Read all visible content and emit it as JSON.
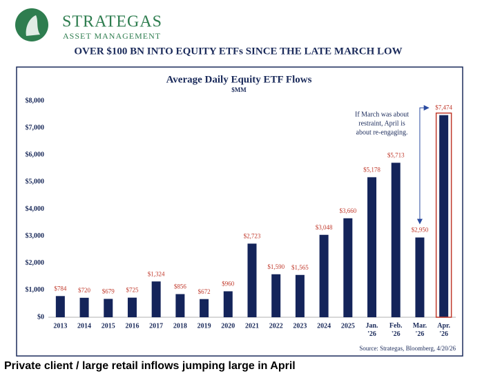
{
  "header": {
    "brand": "STRATEGAS",
    "subbrand": "ASSET MANAGEMENT",
    "headline": "OVER $100 BN INTO EQUITY ETFs SINCE THE LATE MARCH LOW"
  },
  "caption": "Private client / large retail inflows jumping large in April",
  "chart_data": {
    "type": "bar",
    "title": "Average Daily Equity ETF Flows",
    "subtitle": "$MM",
    "categories": [
      "2013",
      "2014",
      "2015",
      "2016",
      "2017",
      "2018",
      "2019",
      "2020",
      "2021",
      "2022",
      "2023",
      "2024",
      "2025",
      "Jan. '26",
      "Feb. '26",
      "Mar. '26",
      "Apr. '26"
    ],
    "values": [
      784,
      720,
      679,
      725,
      1324,
      856,
      672,
      960,
      2723,
      1590,
      1565,
      3048,
      3660,
      5178,
      5713,
      2950,
      7474
    ],
    "value_labels": [
      "$784",
      "$720",
      "$679",
      "$725",
      "$1,324",
      "$856",
      "$672",
      "$960",
      "$2,723",
      "$1,590",
      "$1,565",
      "$3,048",
      "$3,660",
      "$5,178",
      "$5,713",
      "$2,950",
      "$7,474"
    ],
    "color": "#14245a",
    "label_color": "#c0392b",
    "ylim": [
      0,
      8000
    ],
    "yticks": [
      {
        "value": 0,
        "label": "$0"
      },
      {
        "value": 1000,
        "label": "$1,000"
      },
      {
        "value": 2000,
        "label": "$2,000"
      },
      {
        "value": 3000,
        "label": "$3,000"
      },
      {
        "value": 4000,
        "label": "$4,000"
      },
      {
        "value": 5000,
        "label": "$5,000"
      },
      {
        "value": 6000,
        "label": "$6,000"
      },
      {
        "value": 7000,
        "label": "$7,000"
      },
      {
        "value": 8000,
        "label": "$8,000"
      }
    ],
    "grid": false,
    "annotation": [
      "If March was about",
      "restraint, April is",
      "about re-engaging."
    ],
    "source": "Source: Strategas, Bloomberg, 4/20/26"
  }
}
